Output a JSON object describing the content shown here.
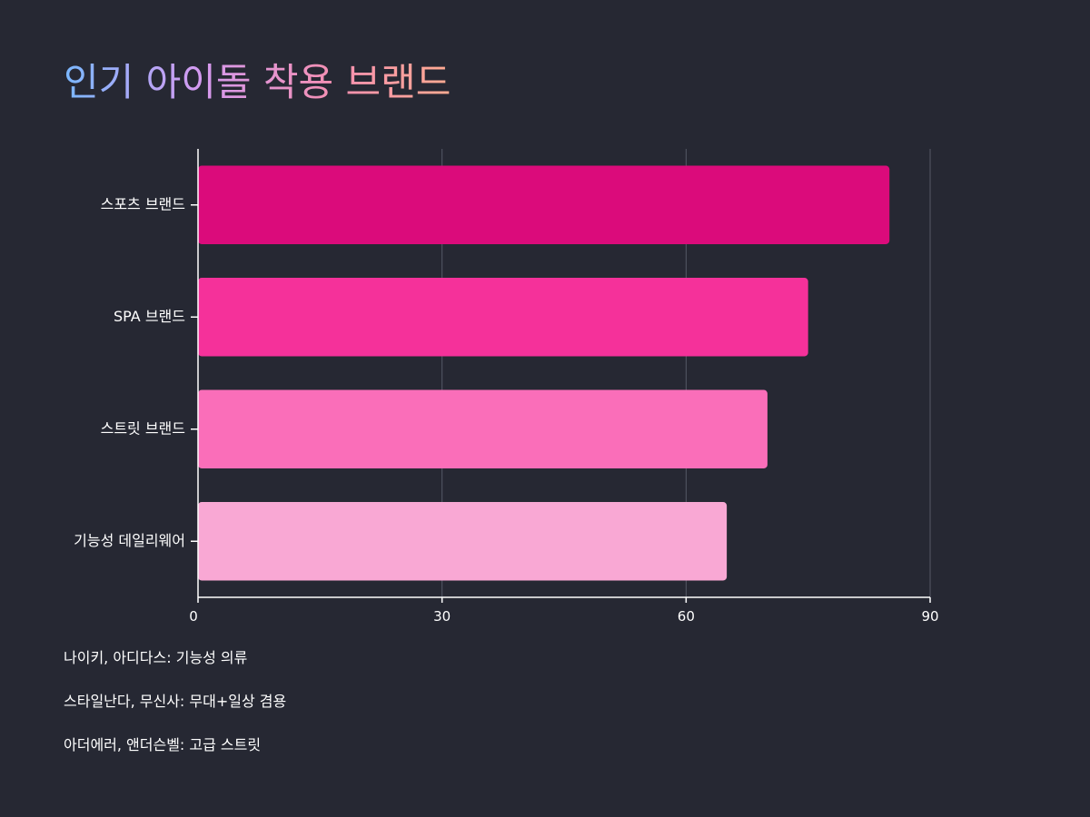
{
  "chart_data": {
    "type": "bar",
    "orientation": "horizontal",
    "title": "인기 아이돌 착용 브랜드",
    "categories": [
      "스포츠 브랜드",
      "SPA 브랜드",
      "스트릿 브랜드",
      "기능성 데일리웨어"
    ],
    "values": [
      85,
      75,
      70,
      65
    ],
    "colors": [
      "#db0b7b",
      "#f5319a",
      "#fa6eb9",
      "#f9a8d4"
    ],
    "xlim": [
      0,
      90
    ],
    "xticks": [
      0,
      30,
      60,
      90
    ],
    "xlabel": "",
    "ylabel": "",
    "grid": true,
    "title_gradient": [
      "#7ab8ff",
      "#d49af0",
      "#f48fb1",
      "#ffab91"
    ]
  },
  "notes": [
    "나이키, 아디다스: 기능성 의류",
    "스타일난다, 무신사: 무대+일상 겸용",
    "아더에러, 앤더슨벨: 고급 스트릿"
  ],
  "colors": {
    "background": "#262833",
    "axis": "#ffffff",
    "grid": "#555866"
  }
}
